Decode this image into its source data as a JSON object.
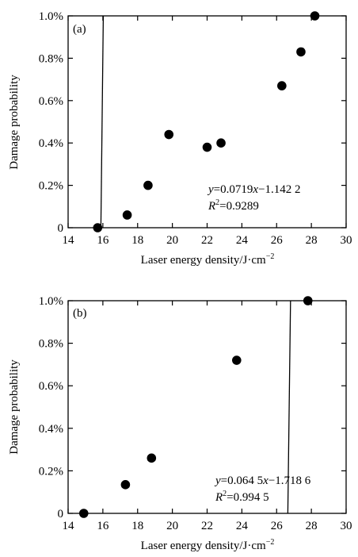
{
  "chart_data": [
    {
      "type": "scatter",
      "panel_label": "(a)",
      "xlabel": "Laser energy density/J·cm",
      "xlabel_sup": "−2",
      "ylabel": "Damage probability",
      "xlim": [
        14,
        30
      ],
      "ylim": [
        0,
        1.0
      ],
      "xticks": [
        {
          "value": 14,
          "label": "14"
        },
        {
          "value": 16,
          "label": "16"
        },
        {
          "value": 18,
          "label": "18"
        },
        {
          "value": 20,
          "label": "20"
        },
        {
          "value": 22,
          "label": "22"
        },
        {
          "value": 24,
          "label": "24"
        },
        {
          "value": 26,
          "label": "26"
        },
        {
          "value": 28,
          "label": "28"
        },
        {
          "value": 30,
          "label": "30"
        }
      ],
      "yticks": [
        {
          "value": 0,
          "label": "0"
        },
        {
          "value": 0.2,
          "label": "0.2%"
        },
        {
          "value": 0.4,
          "label": "0.4%"
        },
        {
          "value": 0.6,
          "label": "0.6%"
        },
        {
          "value": 0.8,
          "label": "0.8%"
        },
        {
          "value": 1.0,
          "label": "1.0%"
        }
      ],
      "points": [
        {
          "x": 15.7,
          "y": 0.0
        },
        {
          "x": 17.4,
          "y": 0.06
        },
        {
          "x": 18.6,
          "y": 0.2
        },
        {
          "x": 19.8,
          "y": 0.44
        },
        {
          "x": 22.0,
          "y": 0.38
        },
        {
          "x": 22.8,
          "y": 0.4
        },
        {
          "x": 26.3,
          "y": 0.67
        },
        {
          "x": 27.4,
          "y": 0.83
        },
        {
          "x": 28.2,
          "y": 1.0
        }
      ],
      "fit": {
        "slope": 0.0719,
        "intercept": -1.1422
      },
      "equation": {
        "y_var": "y",
        "rest": "=0.0719",
        "x_var": "x",
        "tail": "−1.142 2"
      },
      "r2": {
        "var": "R",
        "sup": "2",
        "value": "=0.9289"
      }
    },
    {
      "type": "scatter",
      "panel_label": "(b)",
      "xlabel": "Laser energy density/J·cm",
      "xlabel_sup": "−2",
      "ylabel": "Damage probability",
      "xlim": [
        14,
        30
      ],
      "ylim": [
        0,
        1.0
      ],
      "xticks": [
        {
          "value": 14,
          "label": "14"
        },
        {
          "value": 16,
          "label": "16"
        },
        {
          "value": 18,
          "label": "18"
        },
        {
          "value": 20,
          "label": "20"
        },
        {
          "value": 22,
          "label": "22"
        },
        {
          "value": 24,
          "label": "24"
        },
        {
          "value": 26,
          "label": "26"
        },
        {
          "value": 28,
          "label": "28"
        },
        {
          "value": 30,
          "label": "30"
        }
      ],
      "yticks": [
        {
          "value": 0,
          "label": "0"
        },
        {
          "value": 0.2,
          "label": "0.2%"
        },
        {
          "value": 0.4,
          "label": "0.4%"
        },
        {
          "value": 0.6,
          "label": "0.6%"
        },
        {
          "value": 0.8,
          "label": "0.8%"
        },
        {
          "value": 1.0,
          "label": "1.0%"
        }
      ],
      "points": [
        {
          "x": 14.9,
          "y": 0.0
        },
        {
          "x": 17.3,
          "y": 0.135
        },
        {
          "x": 18.8,
          "y": 0.26
        },
        {
          "x": 23.7,
          "y": 0.72
        },
        {
          "x": 27.8,
          "y": 1.0
        }
      ],
      "fit": {
        "slope": 0.0645,
        "intercept": -1.7186
      },
      "equation": {
        "y_var": "y",
        "rest": "=0.064 5",
        "x_var": "x",
        "tail": "−1.718 6"
      },
      "r2": {
        "var": "R",
        "sup": "2",
        "value": "=0.994 5"
      }
    }
  ]
}
